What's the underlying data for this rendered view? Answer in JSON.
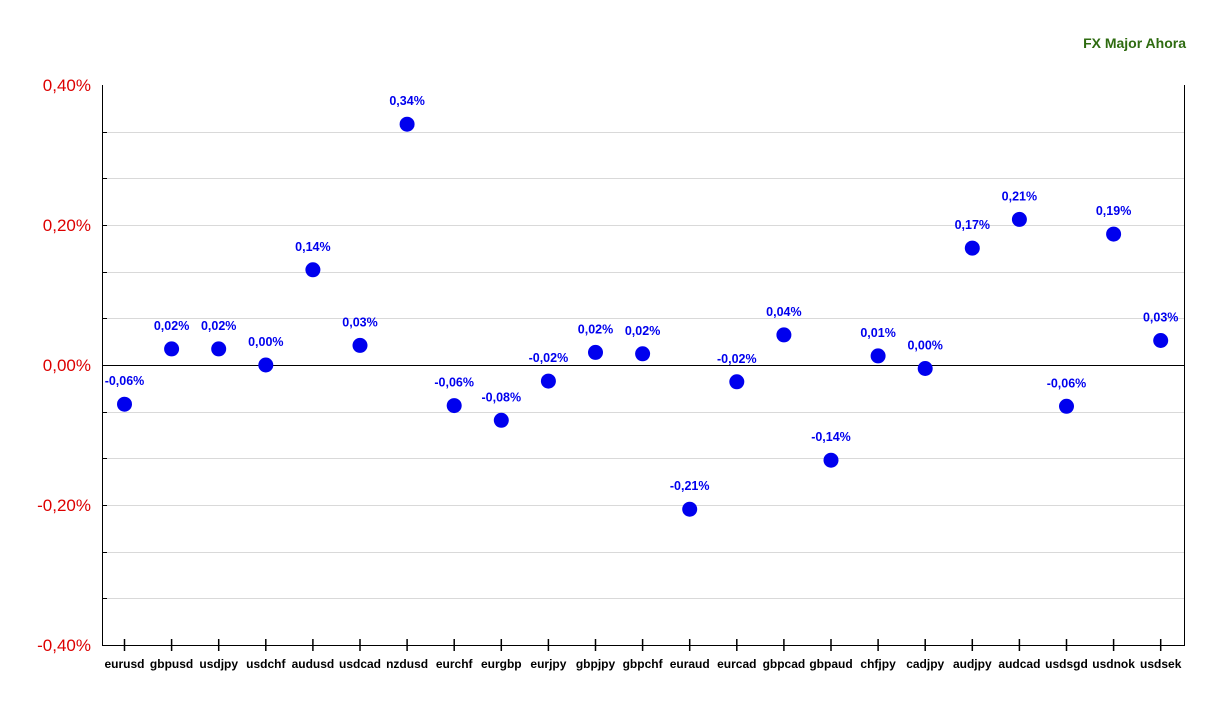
{
  "chart_data": {
    "type": "scatter",
    "title": "FX Major Ahora",
    "categories": [
      "eurusd",
      "gbpusd",
      "usdjpy",
      "usdchf",
      "audusd",
      "usdcad",
      "nzdusd",
      "eurchf",
      "eurgbp",
      "eurjpy",
      "gbpjpy",
      "gbpchf",
      "euraud",
      "eurcad",
      "gbpcad",
      "gbpaud",
      "chfjpy",
      "cadjpy",
      "audjpy",
      "audcad",
      "usdsgd",
      "usdnok",
      "usdsek"
    ],
    "values": [
      -0.056,
      0.023,
      0.023,
      0.0,
      0.136,
      0.028,
      0.344,
      -0.058,
      -0.079,
      -0.023,
      0.018,
      0.016,
      -0.206,
      -0.024,
      0.043,
      -0.136,
      0.013,
      -0.005,
      0.167,
      0.208,
      -0.059,
      0.187,
      0.035
    ],
    "data_labels": [
      "-0,06%",
      "0,02%",
      "0,02%",
      "0,00%",
      "0,14%",
      "0,03%",
      "0,34%",
      "-0,06%",
      "-0,08%",
      "-0,02%",
      "0,02%",
      "0,02%",
      "-0,21%",
      "-0,02%",
      "0,04%",
      "-0,14%",
      "0,01%",
      "0,00%",
      "0,17%",
      "0,21%",
      "-0,06%",
      "0,19%",
      "0,03%"
    ],
    "ylim": [
      -0.4,
      0.4
    ],
    "yticks": [
      0.4,
      0.2,
      0.0,
      -0.2,
      -0.4
    ],
    "ytick_labels": [
      "0,40%",
      "0,20%",
      "0,00%",
      "-0,20%",
      "-0,40%"
    ],
    "grid": true,
    "colors": {
      "marker": "#0000ee",
      "data_label": "#0000ee",
      "ytick_label": "#dd0000",
      "title": "#2e6b10",
      "grid": "#d9d9d9",
      "axis": "#000000"
    }
  }
}
